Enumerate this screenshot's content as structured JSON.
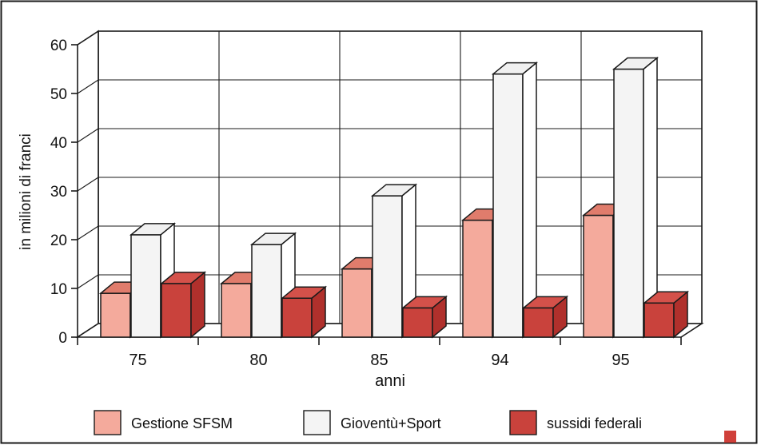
{
  "chart_data": {
    "type": "bar",
    "ylabel": "in milioni di franci",
    "xlabel": "anni",
    "categories": [
      "75",
      "80",
      "85",
      "94",
      "95"
    ],
    "ylim": [
      0,
      60
    ],
    "yticks": [
      0,
      10,
      20,
      30,
      40,
      50,
      60
    ],
    "grid": true,
    "three_d": true,
    "legend_position": "bottom",
    "series": [
      {
        "name": "Gestione SFSM",
        "values": [
          9,
          11,
          14,
          24,
          25
        ],
        "color": "#f4aa9c",
        "side_color": "#d97060",
        "top_color": "#e07c6c"
      },
      {
        "name": "Gioventù+Sport",
        "values": [
          21,
          19,
          29,
          54,
          55
        ],
        "color": "#f4f4f4",
        "side_color": "#ffffff",
        "top_color": "#f0f0f0"
      },
      {
        "name": "sussidi federali",
        "values": [
          11,
          8,
          6,
          6,
          7
        ],
        "color": "#c9423c",
        "side_color": "#b0302c",
        "top_color": "#d4514a"
      }
    ]
  },
  "colors": {
    "frame": "#1a1a1a",
    "grid": "#1a1a1a",
    "corner_mark": "#d0403a"
  }
}
